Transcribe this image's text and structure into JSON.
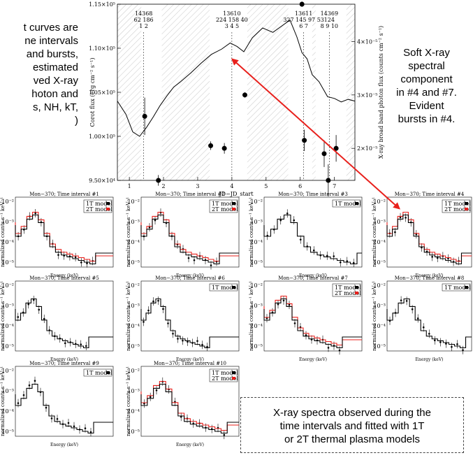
{
  "annotations": {
    "left_lines": [
      "t curves are",
      "ne intervals",
      "and bursts,",
      "estimated",
      "ved X-ray",
      "hoton and",
      "s, NH, kT,",
      ")"
    ],
    "right_lines": [
      "Soft X-ray",
      "spectral",
      "component",
      "in #4 and #7.",
      "Evident",
      "bursts in #4."
    ],
    "box_lines": [
      "X-ray spectra observed during the",
      "time intervals and fitted with 1T",
      "or 2T thermal plasma models"
    ]
  },
  "colors": {
    "fit_1t": "#000000",
    "fit_2t": "#e8201c",
    "arrow": "#e8201c",
    "hatch": "#c8c8c8"
  },
  "chart_data": [
    {
      "type": "line",
      "title": "",
      "xlabel": "JD−JD_start",
      "ylabel": "Corot flux (erg cm⁻² s⁻¹)",
      "y2label": "X-ray broad band photon flux (counts cm⁻² s⁻¹)",
      "xlim": [
        0.65,
        7.6
      ],
      "ylim": [
        95000,
        115000
      ],
      "y2lim": [
        1.4,
        4.7
      ],
      "xticks": [
        1,
        2,
        3,
        4,
        5,
        6,
        7
      ],
      "yticks": [
        {
          "v": 95000,
          "label": "9.50×10⁴"
        },
        {
          "v": 100000,
          "label": "1.00×10⁵"
        },
        {
          "v": 105000,
          "label": "1.05×10⁵"
        },
        {
          "v": 110000,
          "label": "1.10×10⁵"
        },
        {
          "v": 115000,
          "label": "1.15×10⁵"
        }
      ],
      "y2ticks": [
        {
          "v": 2,
          "label": "2×10⁻⁵"
        },
        {
          "v": 3,
          "label": "3×10⁻⁵"
        },
        {
          "v": 4,
          "label": "4×10⁻⁵"
        }
      ],
      "hatched_intervals": [
        [
          0.65,
          1.35
        ],
        [
          1.95,
          3.35
        ],
        [
          4.45,
          5.65
        ],
        [
          6.35,
          6.45
        ],
        [
          7.35,
          7.6
        ]
      ],
      "interval_marks": [
        {
          "x": 1.42,
          "labels": [
            "14368",
            "62 186",
            "1 2"
          ]
        },
        {
          "x": 4.0,
          "labels": [
            "13610",
            "224 158 40",
            "3 4 5"
          ]
        },
        {
          "x": 6.1,
          "labels": [
            "13611",
            "327 145 97 53",
            "6 7"
          ]
        },
        {
          "x": 6.85,
          "labels": [
            "14369",
            "124",
            "8 9 10"
          ]
        }
      ],
      "series": [
        {
          "values_x": [
            0.65,
            0.9,
            1.1,
            1.3,
            1.5,
            1.7,
            1.9,
            2.1,
            2.3,
            2.5,
            2.8,
            3.1,
            3.4,
            3.7,
            3.95,
            4.15,
            4.35,
            4.6,
            4.9,
            5.2,
            5.45,
            5.7,
            5.9,
            6.05,
            6.2,
            6.35,
            6.55,
            6.8,
            7.0,
            7.2,
            7.4,
            7.6
          ],
          "values_y": [
            104000,
            102500,
            100500,
            100000,
            101000,
            102200,
            103500,
            104600,
            105600,
            106200,
            107200,
            108300,
            109300,
            109900,
            110600,
            110200,
            109600,
            111200,
            112300,
            111800,
            112500,
            113200,
            111300,
            109500,
            108800,
            107000,
            106200,
            104500,
            104300,
            103900,
            104200,
            104000
          ]
        }
      ],
      "xray_points": [
        {
          "x": 1.45,
          "y": 2.6,
          "err": 0.35
        },
        {
          "x": 1.85,
          "y": 1.4,
          "err": 0.1
        },
        {
          "x": 3.38,
          "y": 2.05,
          "err": 0.08
        },
        {
          "x": 3.78,
          "y": 2.0,
          "err": 0.1
        },
        {
          "x": 4.38,
          "y": 3.0,
          "err": 0.05
        },
        {
          "x": 6.12,
          "y": 2.15,
          "err": 0.2
        },
        {
          "x": 6.7,
          "y": 1.9,
          "err": 0.25
        },
        {
          "x": 6.82,
          "y": 1.4,
          "err": 0.3
        },
        {
          "x": 7.05,
          "y": 2.0,
          "err": 0.25
        },
        {
          "x": 6.05,
          "y": 4.7,
          "err": 0.05
        }
      ]
    },
    {
      "type": "spectra_grid",
      "xlabel": "Energy (keV)",
      "ylabel": "normalized counts s⁻¹ keV⁻¹",
      "yticks": [
        "10⁻²",
        "10⁻³",
        "10⁻⁴",
        "10⁻⁵"
      ],
      "panels": [
        {
          "title": "Mon−370; Time interval #1",
          "legend": [
            "1T model",
            "2T model"
          ],
          "tail": 0.82
        },
        {
          "title": "Mon−370; Time interval #2",
          "legend": [
            "1T model",
            "2T model"
          ],
          "tail": 0.8
        },
        {
          "title": "Mon−370; Time interval #3",
          "legend": [
            "1T model"
          ],
          "tail": 0.95
        },
        {
          "title": "Mon−370; Time interval #4",
          "legend": [
            "1T model",
            "2T model"
          ],
          "tail": 0.88
        },
        {
          "title": "Mon−370; Time interval #5",
          "legend": [],
          "tail": 0.75
        },
        {
          "title": "Mon−370; Time interval #6",
          "legend": [
            "1T model"
          ],
          "tail": 0.7
        },
        {
          "title": "Mon−370; Time interval #7",
          "legend": [
            "1T model",
            "2T model"
          ],
          "tail": 0.8
        },
        {
          "title": "Mon−370; Time interval #8",
          "legend": [
            "1T model"
          ],
          "tail": 0.93
        },
        {
          "title": "Mon−370; Time interval #9",
          "legend": [
            "1T model"
          ],
          "tail": 0.8
        },
        {
          "title": "Mon−370; Time interval #10",
          "legend": [
            "1T model",
            "2T model"
          ],
          "tail": 0.88
        }
      ]
    }
  ]
}
